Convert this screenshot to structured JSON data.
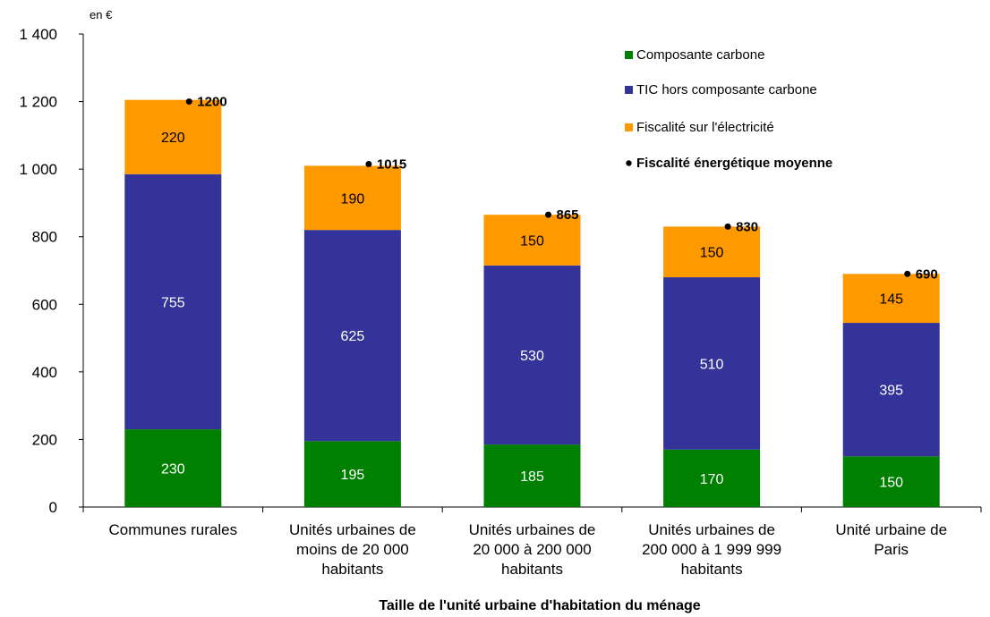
{
  "chart_data": {
    "type": "bar",
    "stacked": true,
    "unit_label": "en €",
    "xlabel": "Taille de l'unité urbaine d'habitation du ménage",
    "ylabel": "",
    "ylim": [
      0,
      1400
    ],
    "yticks": [
      0,
      200,
      400,
      600,
      800,
      1000,
      1200,
      1400
    ],
    "ytick_labels": [
      "0",
      "200",
      "400",
      "600",
      "800",
      "1 000",
      "1 200",
      "1 400"
    ],
    "grid": false,
    "legend_position": "top-right",
    "categories": [
      [
        "Communes rurales"
      ],
      [
        "Unités urbaines de",
        "moins de 20 000",
        "habitants"
      ],
      [
        "Unités urbaines de",
        "20 000 à 200 000",
        "habitants"
      ],
      [
        "Unités urbaines de",
        "200 000 à 1 999 999",
        "habitants"
      ],
      [
        "Unité urbaine de",
        "Paris"
      ]
    ],
    "series": [
      {
        "name": "Composante carbone",
        "color": "#008000",
        "label_color": "#ffffff",
        "values": [
          230,
          195,
          185,
          170,
          150
        ]
      },
      {
        "name": "TIC hors composante carbone",
        "color": "#333399",
        "label_color": "#ffffff",
        "values": [
          755,
          625,
          530,
          510,
          395
        ]
      },
      {
        "name": "Fiscalité sur l'électricité",
        "color": "#ff9900",
        "label_color": "#000000",
        "values": [
          220,
          190,
          150,
          150,
          145
        ]
      }
    ],
    "marker_series": {
      "name": "Fiscalité énergétique moyenne",
      "color": "#000000",
      "values": [
        1200,
        1015,
        865,
        830,
        690
      ]
    }
  }
}
